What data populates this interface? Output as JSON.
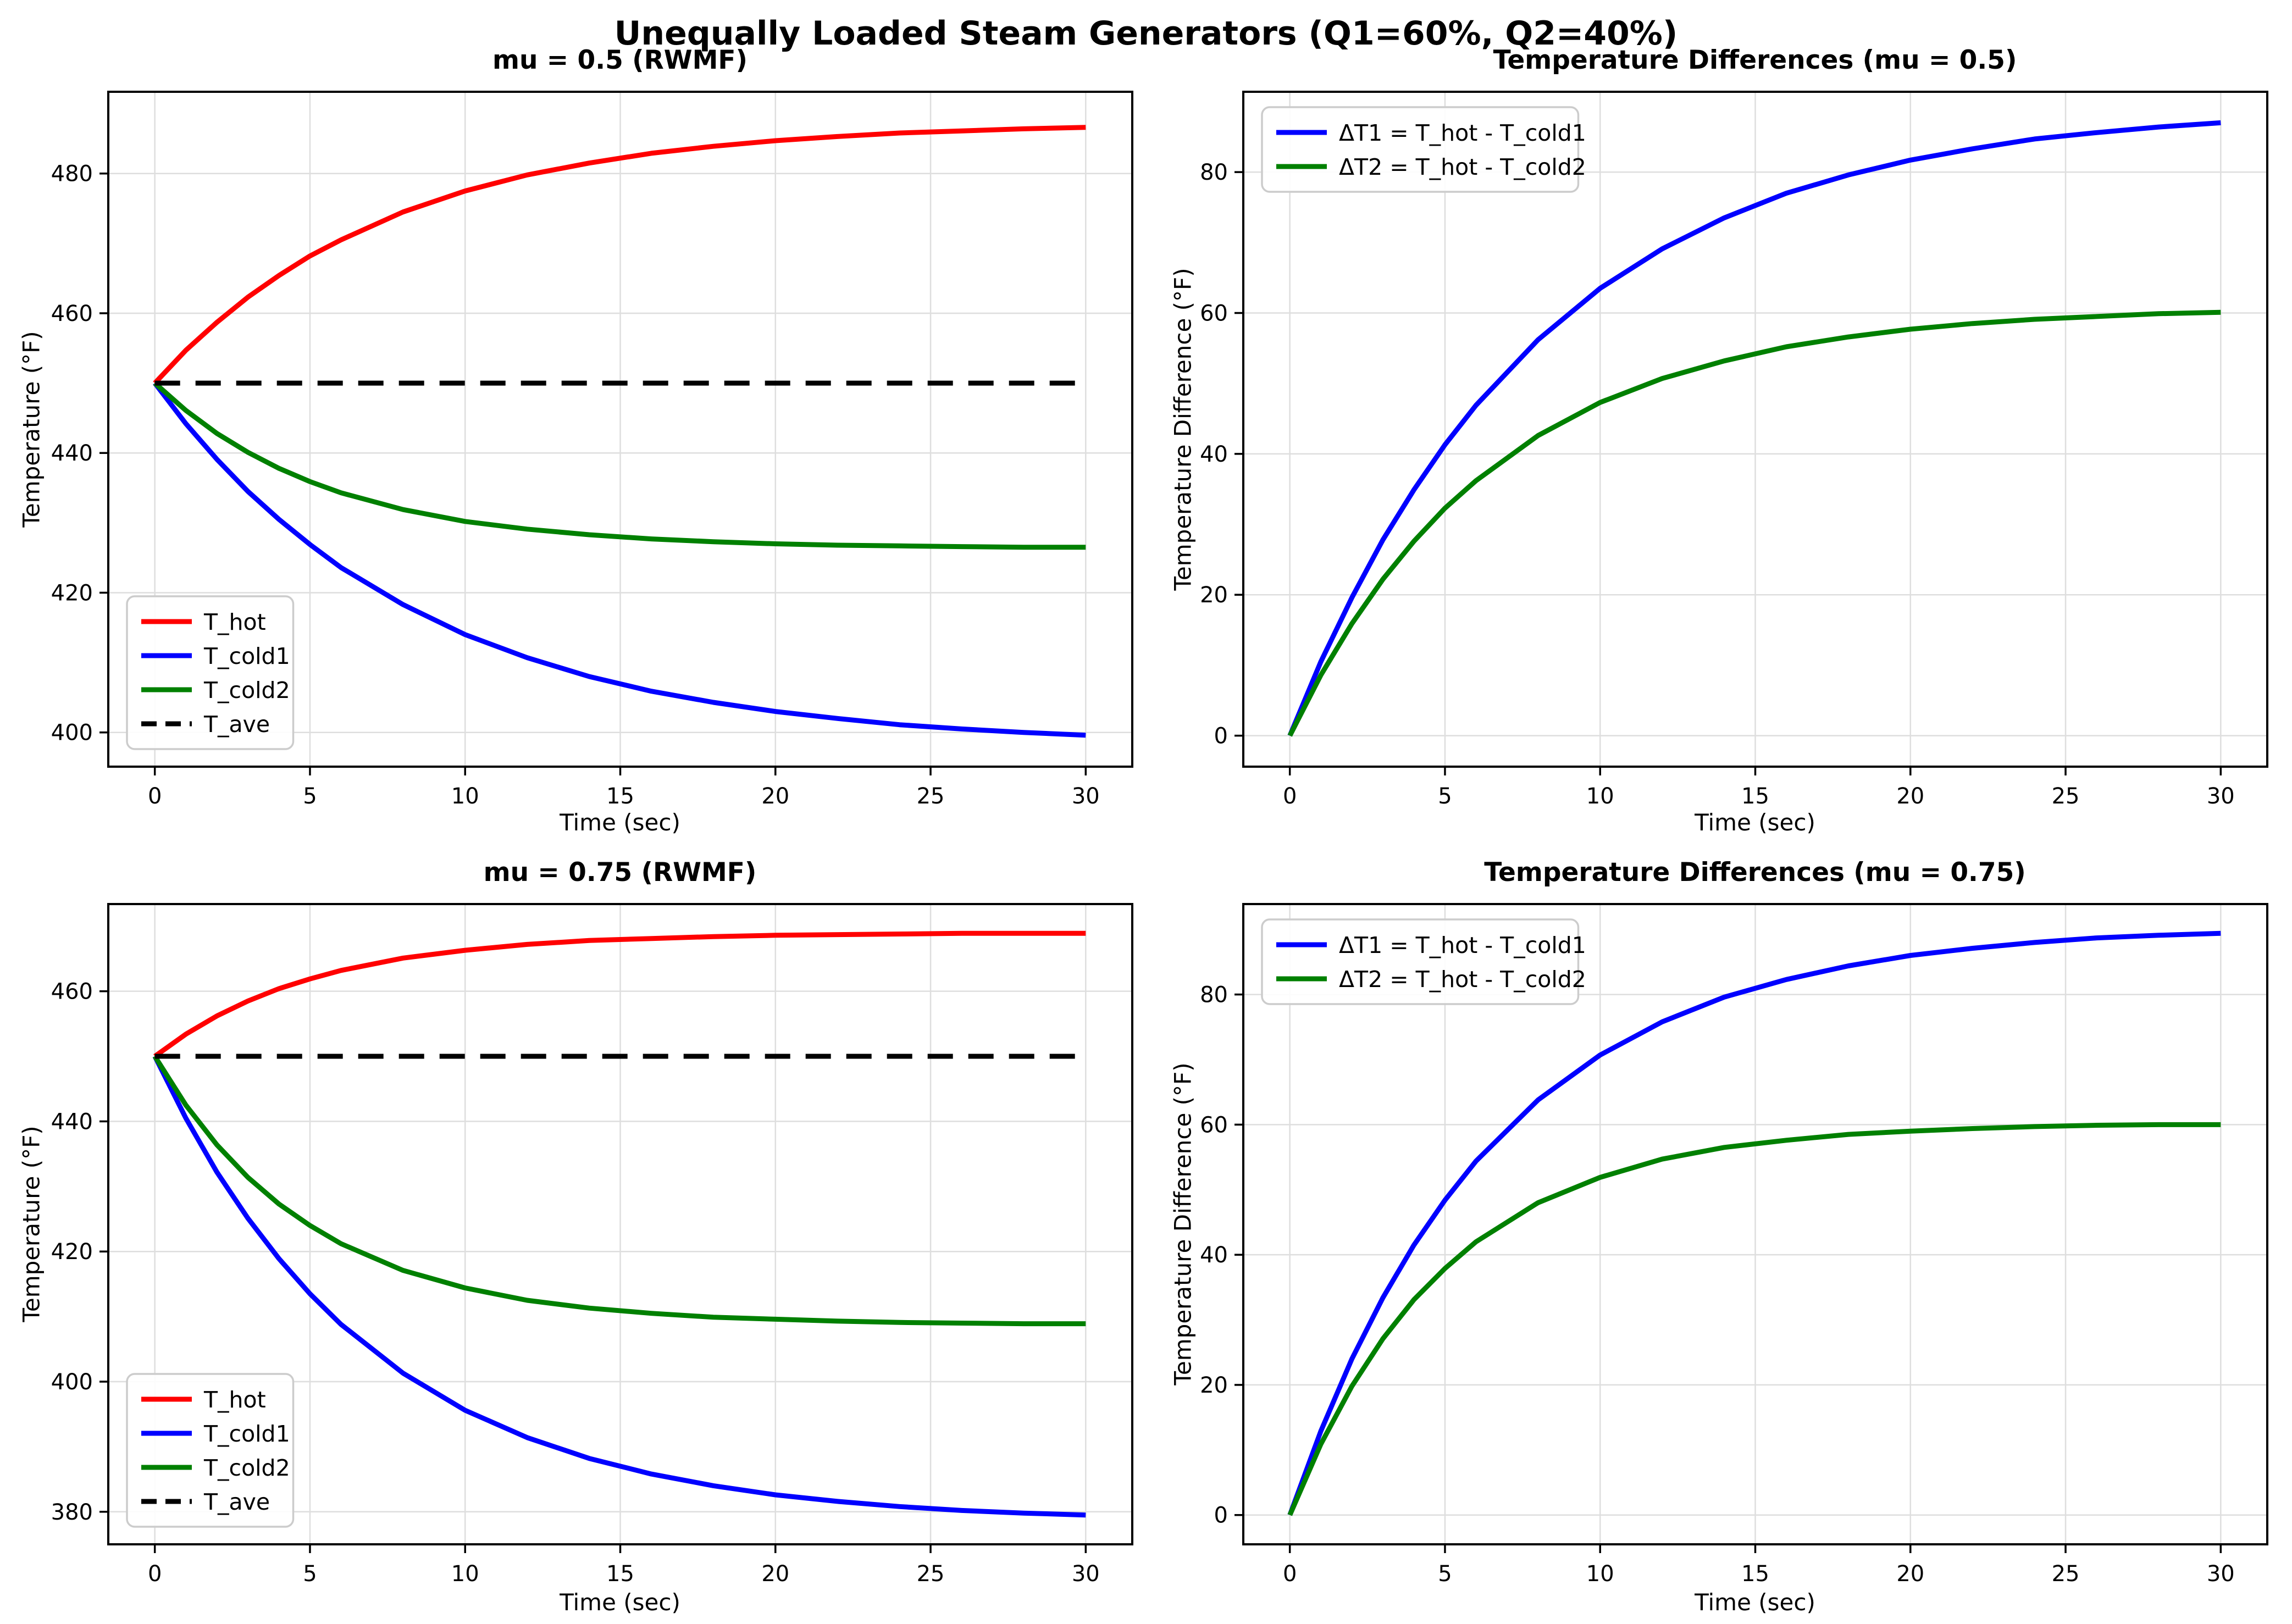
{
  "figure": {
    "title": "Unequally Loaded Steam Generators (Q1=60%, Q2=40%)",
    "background": "#ffffff",
    "grid_color": "#dedede",
    "spine_color": "#000000"
  },
  "chart_data": [
    {
      "type": "line",
      "title": "mu = 0.5 (RWMF)",
      "xlabel": "Time (sec)",
      "ylabel": "Temperature (°F)",
      "xlim": [
        -1.5,
        31.5
      ],
      "ylim": [
        395.1,
        491.7
      ],
      "xticks": [
        0,
        5,
        10,
        15,
        20,
        25,
        30
      ],
      "yticks": [
        400,
        420,
        440,
        460,
        480
      ],
      "grid": true,
      "legend_position": "lower left",
      "series": [
        {
          "name": "T_hot",
          "color": "#ff0000",
          "dash": false,
          "x": [
            0,
            1,
            2,
            3,
            4,
            5,
            6,
            8,
            10,
            12,
            14,
            16,
            18,
            20,
            22,
            24,
            26,
            28,
            30
          ],
          "y": [
            450,
            454.7,
            458.7,
            462.3,
            465.4,
            468.2,
            470.5,
            474.5,
            477.5,
            479.8,
            481.5,
            482.9,
            483.9,
            484.7,
            485.3,
            485.8,
            486.1,
            486.4,
            486.6
          ]
        },
        {
          "name": "T_cold1",
          "color": "#0000ff",
          "dash": false,
          "x": [
            0,
            1,
            2,
            3,
            4,
            5,
            6,
            8,
            10,
            12,
            14,
            16,
            18,
            20,
            22,
            24,
            26,
            28,
            30
          ],
          "y": [
            450,
            444.2,
            439.1,
            434.5,
            430.5,
            426.9,
            423.6,
            418.3,
            414,
            410.7,
            408,
            405.9,
            404.3,
            403,
            402,
            401.1,
            400.5,
            400,
            399.6
          ]
        },
        {
          "name": "T_cold2",
          "color": "#008000",
          "dash": false,
          "x": [
            0,
            1,
            2,
            3,
            4,
            5,
            6,
            8,
            10,
            12,
            14,
            16,
            18,
            20,
            22,
            24,
            26,
            28,
            30
          ],
          "y": [
            450,
            446.1,
            442.8,
            440.1,
            437.8,
            435.9,
            434.3,
            431.9,
            430.2,
            429.1,
            428.3,
            427.7,
            427.3,
            427,
            426.8,
            426.7,
            426.6,
            426.5,
            426.5
          ]
        },
        {
          "name": "T_ave",
          "color": "#000000",
          "dash": true,
          "x": [
            0,
            30
          ],
          "y": [
            450,
            450
          ]
        }
      ]
    },
    {
      "type": "line",
      "title": "Temperature Differences (mu = 0.5)",
      "xlabel": "Time (sec)",
      "ylabel": "Temperature Difference (°F)",
      "xlim": [
        -1.5,
        31.5
      ],
      "ylim": [
        -4.4,
        91.4
      ],
      "xticks": [
        0,
        5,
        10,
        15,
        20,
        25,
        30
      ],
      "yticks": [
        0,
        20,
        40,
        60,
        80
      ],
      "grid": true,
      "legend_position": "upper left",
      "series": [
        {
          "name": "ΔT1 = T_hot - T_cold1",
          "color": "#0000ff",
          "dash": false,
          "x": [
            0,
            1,
            2,
            3,
            4,
            5,
            6,
            8,
            10,
            12,
            14,
            16,
            18,
            20,
            22,
            24,
            26,
            28,
            30
          ],
          "y": [
            0,
            10.5,
            19.6,
            27.8,
            34.9,
            41.3,
            46.9,
            56.2,
            63.5,
            69.1,
            73.5,
            77,
            79.6,
            81.7,
            83.3,
            84.7,
            85.6,
            86.4,
            87
          ]
        },
        {
          "name": "ΔT2 = T_hot - T_cold2",
          "color": "#008000",
          "dash": false,
          "x": [
            0,
            1,
            2,
            3,
            4,
            5,
            6,
            8,
            10,
            12,
            14,
            16,
            18,
            20,
            22,
            24,
            26,
            28,
            30
          ],
          "y": [
            0,
            8.6,
            15.9,
            22.2,
            27.6,
            32.3,
            36.2,
            42.6,
            47.3,
            50.7,
            53.2,
            55.2,
            56.6,
            57.7,
            58.5,
            59.1,
            59.5,
            59.9,
            60.1
          ]
        }
      ]
    },
    {
      "type": "line",
      "title": "mu = 0.75 (RWMF)",
      "xlabel": "Time (sec)",
      "ylabel": "Temperature (°F)",
      "xlim": [
        -1.5,
        31.5
      ],
      "ylim": [
        375.0,
        473.4
      ],
      "xticks": [
        0,
        5,
        10,
        15,
        20,
        25,
        30
      ],
      "yticks": [
        380,
        400,
        420,
        440,
        460
      ],
      "grid": true,
      "legend_position": "lower left",
      "series": [
        {
          "name": "T_hot",
          "color": "#ff0000",
          "dash": false,
          "x": [
            0,
            1,
            2,
            3,
            4,
            5,
            6,
            8,
            10,
            12,
            14,
            16,
            18,
            20,
            22,
            24,
            26,
            28,
            30
          ],
          "y": [
            450,
            453.4,
            456.2,
            458.5,
            460.4,
            461.9,
            463.2,
            465.1,
            466.3,
            467.2,
            467.8,
            468.1,
            468.4,
            468.6,
            468.7,
            468.8,
            468.9,
            468.9,
            468.9
          ]
        },
        {
          "name": "T_cold1",
          "color": "#0000ff",
          "dash": false,
          "x": [
            0,
            1,
            2,
            3,
            4,
            5,
            6,
            8,
            10,
            12,
            14,
            16,
            18,
            20,
            22,
            24,
            26,
            28,
            30
          ],
          "y": [
            450,
            440.5,
            432.2,
            425.1,
            418.9,
            413.5,
            408.8,
            401.3,
            395.6,
            391.4,
            388.2,
            385.8,
            384,
            382.6,
            381.6,
            380.8,
            380.2,
            379.8,
            379.5
          ]
        },
        {
          "name": "T_cold2",
          "color": "#008000",
          "dash": false,
          "x": [
            0,
            1,
            2,
            3,
            4,
            5,
            6,
            8,
            10,
            12,
            14,
            16,
            18,
            20,
            22,
            24,
            26,
            28,
            30
          ],
          "y": [
            450,
            442.5,
            436.4,
            431.4,
            427.3,
            424,
            421.2,
            417.1,
            414.4,
            412.5,
            411.3,
            410.5,
            409.9,
            409.6,
            409.3,
            409.1,
            409,
            408.9,
            408.9
          ]
        },
        {
          "name": "T_ave",
          "color": "#000000",
          "dash": true,
          "x": [
            0,
            30
          ],
          "y": [
            450,
            450
          ]
        }
      ]
    },
    {
      "type": "line",
      "title": "Temperature Differences (mu = 0.75)",
      "xlabel": "Time (sec)",
      "ylabel": "Temperature Difference (°F)",
      "xlim": [
        -1.5,
        31.5
      ],
      "ylim": [
        -4.5,
        93.9
      ],
      "xticks": [
        0,
        5,
        10,
        15,
        20,
        25,
        30
      ],
      "yticks": [
        0,
        20,
        40,
        60,
        80
      ],
      "grid": true,
      "legend_position": "upper left",
      "series": [
        {
          "name": "ΔT1 = T_hot - T_cold1",
          "color": "#0000ff",
          "dash": false,
          "x": [
            0,
            1,
            2,
            3,
            4,
            5,
            6,
            8,
            10,
            12,
            14,
            16,
            18,
            20,
            22,
            24,
            26,
            28,
            30
          ],
          "y": [
            0,
            12.9,
            24,
            33.4,
            41.5,
            48.4,
            54.4,
            63.8,
            70.7,
            75.8,
            79.6,
            82.3,
            84.4,
            86,
            87.1,
            88,
            88.7,
            89.1,
            89.4
          ]
        },
        {
          "name": "ΔT2 = T_hot - T_cold2",
          "color": "#008000",
          "dash": false,
          "x": [
            0,
            1,
            2,
            3,
            4,
            5,
            6,
            8,
            10,
            12,
            14,
            16,
            18,
            20,
            22,
            24,
            26,
            28,
            30
          ],
          "y": [
            0,
            10.9,
            19.8,
            27.1,
            33.1,
            37.9,
            42,
            48,
            51.9,
            54.7,
            56.5,
            57.6,
            58.5,
            59,
            59.4,
            59.7,
            59.9,
            60,
            60
          ]
        }
      ]
    }
  ]
}
